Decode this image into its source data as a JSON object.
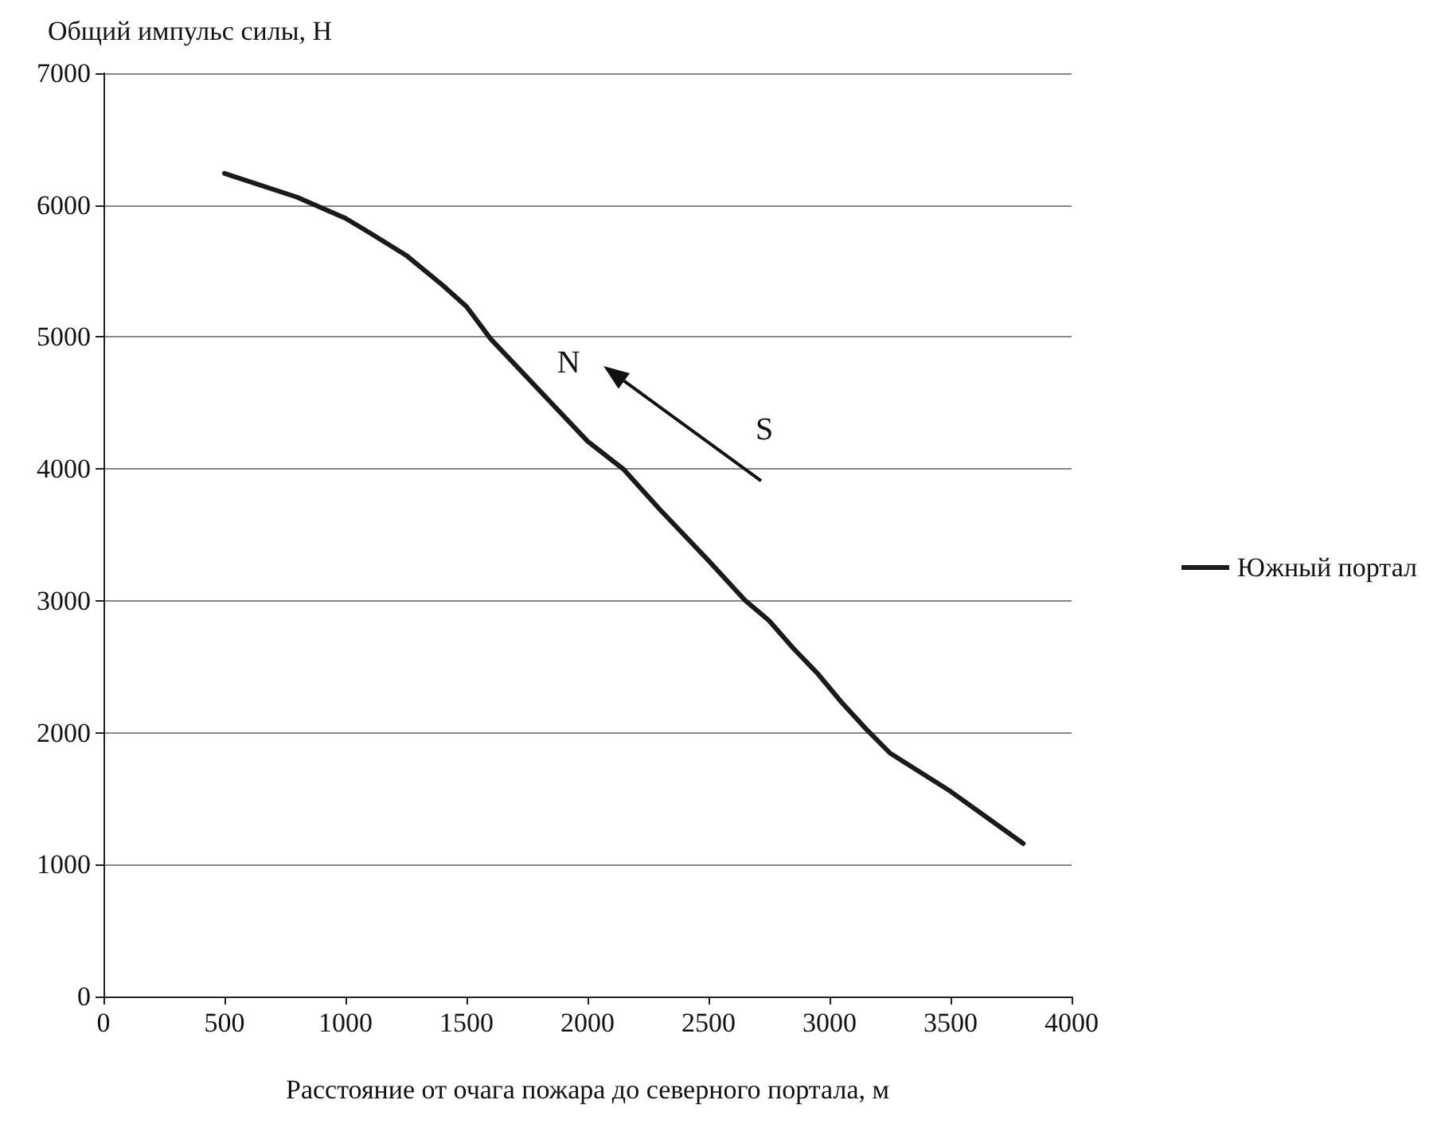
{
  "chart_data": {
    "type": "line",
    "ylabel": "Общий импульс силы, Н",
    "xlabel": "Расстояние от очага пожара до северного портала, м",
    "series": [
      {
        "name": "Южный портал",
        "color": "#1a1a1a",
        "x": [
          500,
          800,
          1000,
          1100,
          1250,
          1400,
          1500,
          1600,
          2000,
          2150,
          2300,
          2500,
          2650,
          2750,
          2850,
          2950,
          3050,
          3150,
          3250,
          3500,
          3800
        ],
        "values": [
          6240,
          6060,
          5900,
          5790,
          5620,
          5395,
          5230,
          4985,
          4210,
          3995,
          3690,
          3305,
          3005,
          2850,
          2640,
          2450,
          2230,
          2030,
          1845,
          1555,
          1160
        ]
      }
    ],
    "xlim": [
      0,
      4000
    ],
    "xticks": [
      0,
      500,
      1000,
      1500,
      2000,
      2500,
      3000,
      3500,
      4000
    ],
    "ylim": [
      0,
      7000
    ],
    "yticks": [
      0,
      1000,
      2000,
      3000,
      4000,
      5000,
      6000,
      7000
    ],
    "grid": "y",
    "legend": "right",
    "marker": "none",
    "line_style": "solid",
    "annotations": [
      "N",
      "S"
    ]
  }
}
